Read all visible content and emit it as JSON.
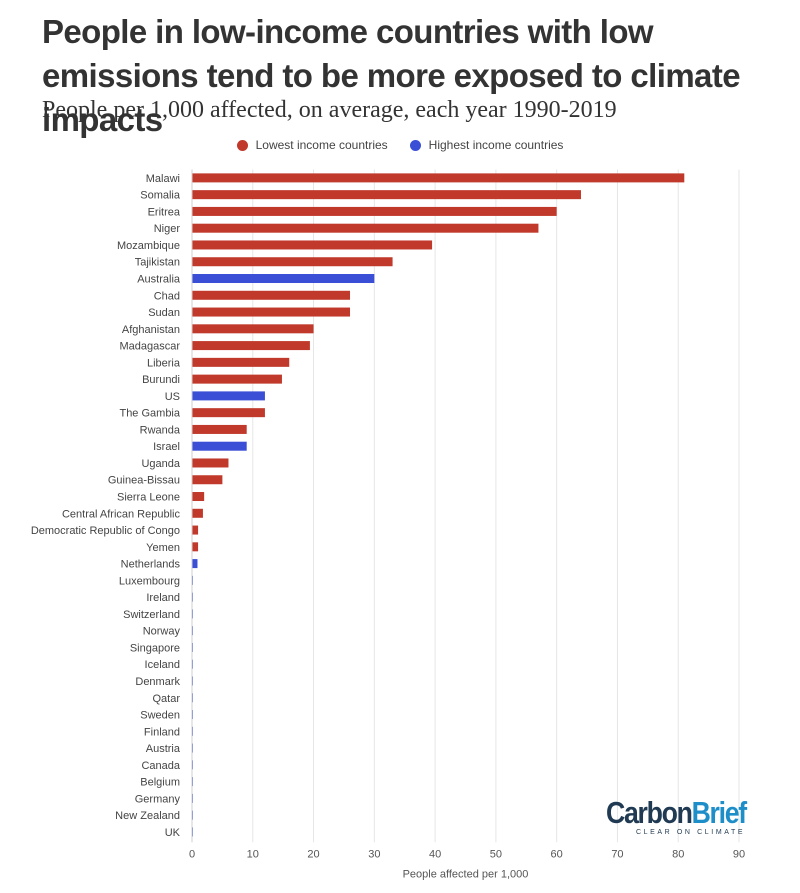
{
  "chart_data": {
    "type": "bar",
    "orientation": "horizontal",
    "title": "People in low-income countries with low emissions tend to be more exposed to climate impacts",
    "subtitle": "People per 1,000 affected, on average, each year 1990-2019",
    "xlabel": "People affected per 1,000",
    "xlim": [
      0,
      90
    ],
    "xticks": [
      0,
      10,
      20,
      30,
      40,
      50,
      60,
      70,
      80,
      90
    ],
    "grid": "vertical",
    "legend_position": "top-center",
    "legend": [
      {
        "group": "low",
        "label": "Lowest income countries",
        "color": "#c0392b"
      },
      {
        "group": "high",
        "label": "Highest income countries",
        "color": "#3a4fd6"
      }
    ],
    "categories": [
      "Malawi",
      "Somalia",
      "Eritrea",
      "Niger",
      "Mozambique",
      "Tajikistan",
      "Australia",
      "Chad",
      "Sudan",
      "Afghanistan",
      "Madagascar",
      "Liberia",
      "Burundi",
      "US",
      "The Gambia",
      "Rwanda",
      "Israel",
      "Uganda",
      "Guinea-Bissau",
      "Sierra Leone",
      "Central African Republic",
      "Democratic Republic of Congo",
      "Yemen",
      "Netherlands",
      "Luxembourg",
      "Ireland",
      "Switzerland",
      "Norway",
      "Singapore",
      "Iceland",
      "Denmark",
      "Qatar",
      "Sweden",
      "Finland",
      "Austria",
      "Canada",
      "Belgium",
      "Germany",
      "New Zealand",
      "UK"
    ],
    "values": [
      81,
      64,
      60,
      57,
      39.5,
      33,
      30,
      26,
      26,
      20,
      19.4,
      16,
      14.8,
      12,
      12,
      9,
      9,
      6,
      5,
      2,
      1.8,
      1,
      1,
      0.9,
      0.15,
      0.15,
      0.15,
      0.15,
      0.15,
      0.15,
      0.15,
      0.15,
      0.15,
      0.15,
      0.15,
      0.15,
      0.15,
      0.15,
      0.15,
      0.15
    ],
    "groups": [
      "low",
      "low",
      "low",
      "low",
      "low",
      "low",
      "high",
      "low",
      "low",
      "low",
      "low",
      "low",
      "low",
      "high",
      "low",
      "low",
      "high",
      "low",
      "low",
      "low",
      "low",
      "low",
      "low",
      "high",
      "high",
      "high",
      "high",
      "high",
      "high",
      "high",
      "high",
      "high",
      "high",
      "high",
      "high",
      "high",
      "high",
      "high",
      "high",
      "high"
    ]
  },
  "logo": {
    "part1": "Carbon",
    "part2": "Brief",
    "tagline": "CLEAR ON CLIMATE"
  }
}
